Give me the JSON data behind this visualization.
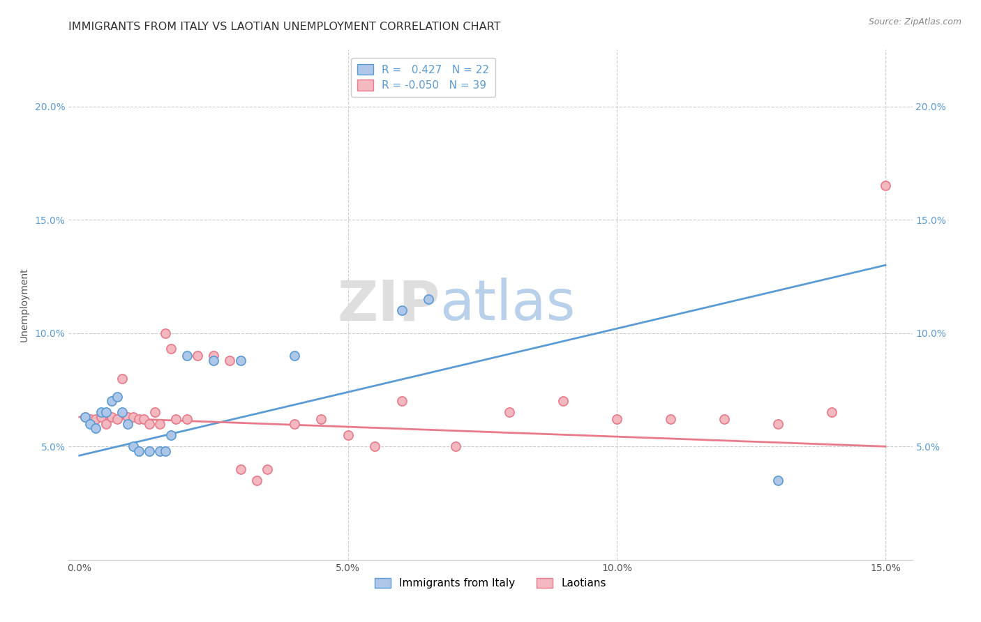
{
  "title": "IMMIGRANTS FROM ITALY VS LAOTIAN UNEMPLOYMENT CORRELATION CHART",
  "source_text": "Source: ZipAtlas.com",
  "ylabel_label": "Unemployment",
  "xlim": [
    -0.002,
    0.155
  ],
  "ylim": [
    0.0,
    0.225
  ],
  "xtick_labels": [
    "0.0%",
    "",
    "5.0%",
    "",
    "10.0%",
    "",
    "15.0%"
  ],
  "xtick_vals": [
    0.0,
    0.025,
    0.05,
    0.075,
    0.1,
    0.125,
    0.15
  ],
  "ytick_labels": [
    "5.0%",
    "10.0%",
    "15.0%",
    "20.0%"
  ],
  "ytick_vals": [
    0.05,
    0.1,
    0.15,
    0.2
  ],
  "blue_color": "#AEC6E8",
  "pink_color": "#F4B8C1",
  "line_blue": "#5B9BD5",
  "line_pink": "#E97A8A",
  "legend_R_blue": "0.427",
  "legend_N_blue": "22",
  "legend_R_pink": "-0.050",
  "legend_N_pink": "39",
  "watermark_zip": "ZIP",
  "watermark_atlas": "atlas",
  "blue_scatter_x": [
    0.001,
    0.002,
    0.003,
    0.004,
    0.005,
    0.006,
    0.007,
    0.008,
    0.009,
    0.01,
    0.011,
    0.013,
    0.015,
    0.016,
    0.017,
    0.02,
    0.025,
    0.03,
    0.04,
    0.06,
    0.065,
    0.13
  ],
  "blue_scatter_y": [
    0.063,
    0.06,
    0.058,
    0.065,
    0.065,
    0.07,
    0.072,
    0.065,
    0.06,
    0.05,
    0.048,
    0.048,
    0.048,
    0.048,
    0.055,
    0.09,
    0.088,
    0.088,
    0.09,
    0.11,
    0.115,
    0.035
  ],
  "pink_scatter_x": [
    0.001,
    0.002,
    0.003,
    0.004,
    0.005,
    0.006,
    0.007,
    0.008,
    0.009,
    0.01,
    0.011,
    0.012,
    0.013,
    0.014,
    0.015,
    0.016,
    0.017,
    0.018,
    0.02,
    0.022,
    0.025,
    0.028,
    0.03,
    0.033,
    0.035,
    0.04,
    0.045,
    0.05,
    0.055,
    0.06,
    0.07,
    0.08,
    0.09,
    0.1,
    0.11,
    0.12,
    0.13,
    0.14,
    0.15
  ],
  "pink_scatter_y": [
    0.063,
    0.062,
    0.062,
    0.063,
    0.06,
    0.063,
    0.062,
    0.08,
    0.063,
    0.063,
    0.062,
    0.062,
    0.06,
    0.065,
    0.06,
    0.1,
    0.093,
    0.062,
    0.062,
    0.09,
    0.09,
    0.088,
    0.04,
    0.035,
    0.04,
    0.06,
    0.062,
    0.055,
    0.05,
    0.07,
    0.05,
    0.065,
    0.07,
    0.062,
    0.062,
    0.062,
    0.06,
    0.065,
    0.165
  ],
  "blue_line_x": [
    0.0,
    0.15
  ],
  "blue_line_y": [
    0.046,
    0.13
  ],
  "pink_line_x": [
    0.0,
    0.15
  ],
  "pink_line_y": [
    0.063,
    0.05
  ],
  "grid_color": "#CCCCCC",
  "bg_color": "#FFFFFF",
  "title_color": "#333333",
  "title_fontsize": 11.5,
  "ylabel_fontsize": 10,
  "tick_fontsize": 10,
  "source_fontsize": 9,
  "legend_fontsize": 11
}
